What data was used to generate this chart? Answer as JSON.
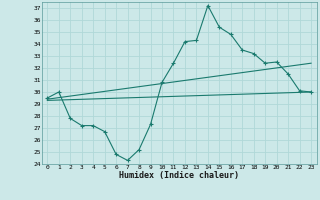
{
  "xlabel": "Humidex (Indice chaleur)",
  "xlim": [
    -0.5,
    23.5
  ],
  "ylim": [
    24,
    37.5
  ],
  "yticks": [
    24,
    25,
    26,
    27,
    28,
    29,
    30,
    31,
    32,
    33,
    34,
    35,
    36,
    37
  ],
  "xticks": [
    0,
    1,
    2,
    3,
    4,
    5,
    6,
    7,
    8,
    9,
    10,
    11,
    12,
    13,
    14,
    15,
    16,
    17,
    18,
    19,
    20,
    21,
    22,
    23
  ],
  "bg_color": "#cce8e8",
  "grid_color": "#b0d8d8",
  "line_color": "#1a7a6e",
  "curve1_x": [
    0,
    1,
    2,
    3,
    4,
    5,
    6,
    7,
    8,
    9,
    10,
    11,
    12,
    13,
    14,
    15,
    16,
    17,
    18,
    19,
    20,
    21,
    22,
    23
  ],
  "curve1_y": [
    29.5,
    30.0,
    27.8,
    27.2,
    27.2,
    26.7,
    24.8,
    24.3,
    25.2,
    27.3,
    30.8,
    32.4,
    34.2,
    34.3,
    37.2,
    35.4,
    34.8,
    33.5,
    33.2,
    32.4,
    32.5,
    31.5,
    30.1,
    30.0
  ],
  "curve2_x": [
    0,
    23
  ],
  "curve2_y": [
    29.3,
    30.0
  ],
  "curve3_x": [
    0,
    23
  ],
  "curve3_y": [
    29.4,
    32.4
  ]
}
